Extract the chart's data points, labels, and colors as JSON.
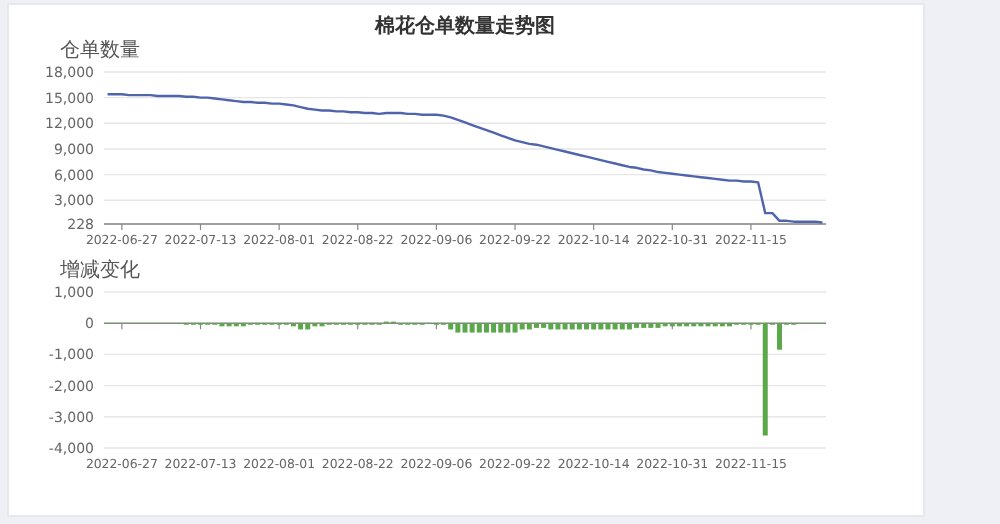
{
  "chart_data": [
    {
      "type": "line",
      "title": "棉花仓单数量走势图",
      "ylabel": "仓单数量",
      "grid": "y",
      "color": "#4f64ad",
      "ylim": [
        228,
        18000
      ],
      "yticks": [
        228,
        {
          "value": 3000,
          "label": "3,000"
        },
        {
          "value": 6000,
          "label": "6,000"
        },
        {
          "value": 9000,
          "label": "9,000"
        },
        {
          "value": 12000,
          "label": "12,000"
        },
        {
          "value": 15000,
          "label": "15,000"
        },
        {
          "value": 18000,
          "label": "18,000"
        }
      ],
      "categories": [
        null,
        null,
        "2022-06-27",
        null,
        null,
        null,
        null,
        null,
        null,
        null,
        null,
        null,
        null,
        "2022-07-13",
        null,
        null,
        null,
        null,
        null,
        null,
        null,
        null,
        null,
        null,
        "2022-08-01",
        null,
        null,
        null,
        null,
        null,
        null,
        null,
        null,
        null,
        null,
        "2022-08-22",
        null,
        null,
        null,
        null,
        null,
        null,
        null,
        null,
        null,
        null,
        "2022-09-06",
        null,
        null,
        null,
        null,
        null,
        null,
        null,
        null,
        null,
        null,
        "2022-09-22",
        null,
        null,
        null,
        null,
        null,
        null,
        null,
        null,
        null,
        null,
        "2022-10-14",
        null,
        null,
        null,
        null,
        null,
        null,
        null,
        null,
        null,
        null,
        "2022-10-31",
        null,
        null,
        null,
        null,
        null,
        null,
        null,
        null,
        null,
        null,
        "2022-11-15",
        null,
        null,
        null,
        null,
        null,
        null,
        null,
        null,
        null,
        null
      ],
      "values": [
        15400,
        15400,
        15400,
        15300,
        15300,
        15300,
        15300,
        15200,
        15200,
        15200,
        15200,
        15100,
        15100,
        15000,
        15000,
        14900,
        14800,
        14700,
        14600,
        14500,
        14500,
        14400,
        14400,
        14300,
        14300,
        14200,
        14100,
        13900,
        13700,
        13600,
        13500,
        13500,
        13400,
        13400,
        13300,
        13300,
        13200,
        13200,
        13100,
        13200,
        13200,
        13200,
        13100,
        13100,
        13000,
        13000,
        13000,
        12900,
        12700,
        12400,
        12100,
        11800,
        11500,
        11200,
        10900,
        10600,
        10300,
        10000,
        9800,
        9600,
        9500,
        9300,
        9100,
        8900,
        8700,
        8500,
        8300,
        8100,
        7900,
        7700,
        7500,
        7300,
        7100,
        6900,
        6800,
        6600,
        6500,
        6300,
        6200,
        6100,
        6000,
        5900,
        5800,
        5700,
        5600,
        5500,
        5400,
        5300,
        5300,
        5200,
        5200,
        5100,
        1500,
        1500,
        600,
        600,
        500,
        500,
        500,
        500,
        400
      ]
    },
    {
      "type": "bar",
      "ylabel": "增减变化",
      "grid": "y",
      "color": "#5aa84a",
      "ylim": [
        -4000,
        1000
      ],
      "yticks": [
        {
          "value": -4000,
          "label": "-4,000"
        },
        {
          "value": -3000,
          "label": "-3,000"
        },
        {
          "value": -2000,
          "label": "-2,000"
        },
        {
          "value": -1000,
          "label": "-1,000"
        },
        0,
        {
          "value": 1000,
          "label": "1,000"
        }
      ],
      "categories": [
        null,
        null,
        "2022-06-27",
        null,
        null,
        null,
        null,
        null,
        null,
        null,
        null,
        null,
        null,
        "2022-07-13",
        null,
        null,
        null,
        null,
        null,
        null,
        null,
        null,
        null,
        null,
        "2022-08-01",
        null,
        null,
        null,
        null,
        null,
        null,
        null,
        null,
        null,
        null,
        "2022-08-22",
        null,
        null,
        null,
        null,
        null,
        null,
        null,
        null,
        null,
        null,
        "2022-09-06",
        null,
        null,
        null,
        null,
        null,
        null,
        null,
        null,
        null,
        null,
        "2022-09-22",
        null,
        null,
        null,
        null,
        null,
        null,
        null,
        null,
        null,
        null,
        "2022-10-14",
        null,
        null,
        null,
        null,
        null,
        null,
        null,
        null,
        null,
        null,
        "2022-10-31",
        null,
        null,
        null,
        null,
        null,
        null,
        null,
        null,
        null,
        null,
        "2022-11-15",
        null,
        null,
        null,
        null,
        null,
        null,
        null,
        null,
        null,
        null
      ],
      "values": [
        0,
        0,
        0,
        0,
        0,
        0,
        0,
        0,
        0,
        0,
        0,
        -50,
        -50,
        -50,
        -50,
        -50,
        -100,
        -100,
        -100,
        -100,
        -50,
        -50,
        -50,
        -50,
        -50,
        -50,
        -100,
        -200,
        -200,
        -100,
        -100,
        -50,
        -50,
        -50,
        -50,
        -50,
        -50,
        -50,
        -50,
        50,
        50,
        -50,
        -50,
        -50,
        -50,
        0,
        -50,
        -50,
        -200,
        -300,
        -300,
        -300,
        -300,
        -300,
        -300,
        -300,
        -300,
        -300,
        -200,
        -200,
        -150,
        -150,
        -200,
        -200,
        -200,
        -200,
        -200,
        -200,
        -200,
        -200,
        -200,
        -200,
        -200,
        -200,
        -150,
        -150,
        -150,
        -150,
        -100,
        -100,
        -100,
        -100,
        -100,
        -100,
        -100,
        -100,
        -100,
        -100,
        -50,
        -50,
        -50,
        -50,
        -3600,
        -50,
        -850,
        -50,
        -50,
        0,
        0,
        0,
        0
      ]
    }
  ]
}
